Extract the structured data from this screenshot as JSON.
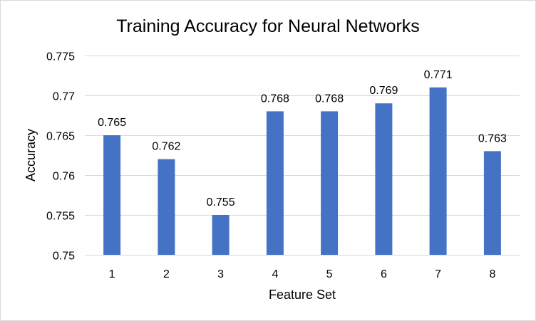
{
  "chart_data": {
    "type": "bar",
    "title": "Training Accuracy for Neural Networks",
    "xlabel": "Feature Set",
    "ylabel": "Accuracy",
    "categories": [
      "1",
      "2",
      "3",
      "4",
      "5",
      "6",
      "7",
      "8"
    ],
    "values": [
      0.765,
      0.762,
      0.755,
      0.768,
      0.768,
      0.769,
      0.771,
      0.763
    ],
    "data_labels": [
      "0.765",
      "0.762",
      "0.755",
      "0.768",
      "0.768",
      "0.769",
      "0.771",
      "0.763"
    ],
    "ylim": [
      0.75,
      0.775
    ],
    "yticks": [
      0.75,
      0.755,
      0.76,
      0.765,
      0.77,
      0.775
    ],
    "ytick_labels": [
      "0.75",
      "0.755",
      "0.76",
      "0.765",
      "0.77",
      "0.775"
    ],
    "bar_color": "#4472C4",
    "grid": true,
    "legend": "none"
  }
}
